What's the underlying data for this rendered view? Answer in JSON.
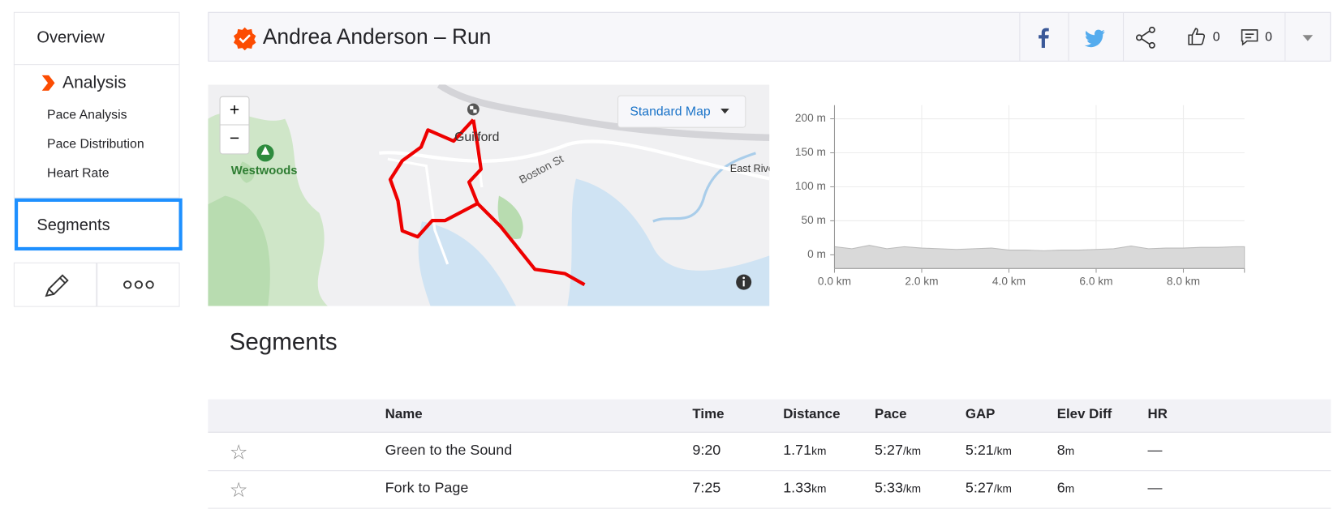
{
  "nav": {
    "overview": "Overview",
    "analysis": "Analysis",
    "sub": [
      "Pace Analysis",
      "Pace Distribution",
      "Heart Rate"
    ],
    "segments": "Segments"
  },
  "header": {
    "title": "Andrea Anderson – Run",
    "kudos": "0",
    "comments": "0"
  },
  "map": {
    "labels": [
      "Guilford",
      "Westwoods",
      "Boston St",
      "East Rive"
    ],
    "map_type": "Standard Map",
    "zoom_in": "+",
    "zoom_out": "−"
  },
  "chart_data": {
    "type": "area",
    "color": "#d9d9d9",
    "grid": true,
    "x": [
      0,
      0.4,
      0.8,
      1.2,
      1.6,
      2.0,
      2.4,
      2.8,
      3.2,
      3.6,
      4.0,
      4.4,
      4.8,
      5.2,
      5.6,
      6.0,
      6.4,
      6.8,
      7.2,
      7.6,
      8.0,
      8.4,
      8.8,
      9.2,
      9.4
    ],
    "values": [
      12,
      9,
      14,
      9,
      12,
      10,
      9,
      8,
      9,
      10,
      7,
      7,
      6,
      7,
      7,
      8,
      9,
      13,
      9,
      10,
      10,
      11,
      11,
      12,
      12
    ],
    "xlim": [
      0,
      9.4
    ],
    "ylim": [
      -20,
      220
    ],
    "xticks": [
      {
        "value": 0,
        "label": "0.0 km"
      },
      {
        "value": 2,
        "label": "2.0 km"
      },
      {
        "value": 4,
        "label": "4.0 km"
      },
      {
        "value": 6,
        "label": "6.0 km"
      },
      {
        "value": 8,
        "label": "8.0 km"
      }
    ],
    "yticks": [
      {
        "value": 0,
        "label": "0 m"
      },
      {
        "value": 50,
        "label": "50 m"
      },
      {
        "value": 100,
        "label": "100 m"
      },
      {
        "value": 150,
        "label": "150 m"
      },
      {
        "value": 200,
        "label": "200 m"
      }
    ]
  },
  "segments": {
    "title": "Segments",
    "columns": [
      "Name",
      "Time",
      "Distance",
      "Pace",
      "GAP",
      "Elev Diff",
      "HR"
    ],
    "rows": [
      {
        "name": "Green to the Sound",
        "time": "9:20",
        "distance": "1.71",
        "distance_unit": "km",
        "pace": "5:27",
        "pace_unit": "/km",
        "gap": "5:21",
        "gap_unit": "/km",
        "elev_diff": "8",
        "elev_unit": "m",
        "hr": "—"
      },
      {
        "name": "Fork to Page",
        "time": "7:25",
        "distance": "1.33",
        "distance_unit": "km",
        "pace": "5:33",
        "pace_unit": "/km",
        "gap": "5:27",
        "gap_unit": "/km",
        "elev_diff": "6",
        "elev_unit": "m",
        "hr": "—"
      }
    ]
  }
}
